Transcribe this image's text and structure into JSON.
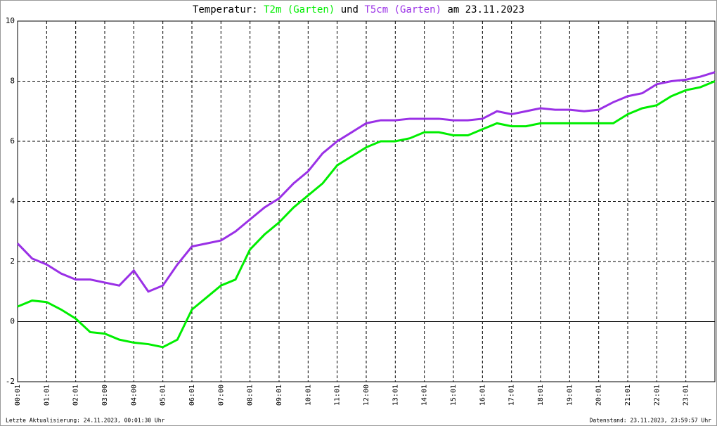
{
  "chart_data": {
    "type": "line",
    "title_prefix": "Temperatur:",
    "title_joiner": "und",
    "title_suffix": "am 23.11.2023",
    "x": [
      0,
      0.5,
      1,
      1.5,
      2,
      2.5,
      3,
      3.5,
      4,
      4.5,
      5,
      5.5,
      6,
      6.5,
      7,
      7.5,
      8,
      8.5,
      9,
      9.5,
      10,
      10.5,
      11,
      11.5,
      12,
      12.5,
      13,
      13.5,
      14,
      14.5,
      15,
      15.5,
      16,
      16.5,
      17,
      17.5,
      18,
      18.5,
      19,
      19.5,
      20,
      20.5,
      21,
      21.5,
      22,
      22.5,
      23,
      23.5,
      24
    ],
    "series": [
      {
        "name": "T2m (Garten)",
        "color": "#00ee00",
        "values": [
          0.5,
          0.7,
          0.65,
          0.4,
          0.1,
          -0.35,
          -0.4,
          -0.6,
          -0.7,
          -0.75,
          -0.85,
          -0.6,
          0.4,
          0.8,
          1.2,
          1.4,
          2.4,
          2.9,
          3.3,
          3.8,
          4.2,
          4.6,
          5.2,
          5.5,
          5.8,
          6.0,
          6.0,
          6.1,
          6.3,
          6.3,
          6.2,
          6.2,
          6.4,
          6.6,
          6.5,
          6.5,
          6.6,
          6.6,
          6.6,
          6.6,
          6.6,
          6.6,
          6.9,
          7.1,
          7.2,
          7.5,
          7.7,
          7.8,
          8.0
        ]
      },
      {
        "name": "T5cm (Garten)",
        "color": "#9a30e6",
        "values": [
          2.6,
          2.1,
          1.9,
          1.6,
          1.4,
          1.4,
          1.3,
          1.2,
          1.7,
          1.0,
          1.2,
          1.9,
          2.5,
          2.6,
          2.7,
          3.0,
          3.4,
          3.8,
          4.1,
          4.6,
          5.0,
          5.6,
          6.0,
          6.3,
          6.6,
          6.7,
          6.7,
          6.75,
          6.75,
          6.75,
          6.7,
          6.7,
          6.75,
          7.0,
          6.9,
          7.0,
          7.1,
          7.05,
          7.05,
          7.0,
          7.05,
          7.3,
          7.5,
          7.6,
          7.9,
          8.0,
          8.05,
          8.15,
          8.3
        ]
      }
    ],
    "xlim": [
      0,
      24
    ],
    "xticks": [
      {
        "value": 0,
        "label": "00:01"
      },
      {
        "value": 1,
        "label": "01:01"
      },
      {
        "value": 2,
        "label": "02:01"
      },
      {
        "value": 3,
        "label": "03:00"
      },
      {
        "value": 4,
        "label": "04:00"
      },
      {
        "value": 5,
        "label": "05:01"
      },
      {
        "value": 6,
        "label": "06:01"
      },
      {
        "value": 7,
        "label": "07:00"
      },
      {
        "value": 8,
        "label": "08:01"
      },
      {
        "value": 9,
        "label": "09:01"
      },
      {
        "value": 10,
        "label": "10:01"
      },
      {
        "value": 11,
        "label": "11:01"
      },
      {
        "value": 12,
        "label": "12:00"
      },
      {
        "value": 13,
        "label": "13:01"
      },
      {
        "value": 14,
        "label": "14:01"
      },
      {
        "value": 15,
        "label": "15:01"
      },
      {
        "value": 16,
        "label": "16:01"
      },
      {
        "value": 17,
        "label": "17:01"
      },
      {
        "value": 18,
        "label": "18:01"
      },
      {
        "value": 19,
        "label": "19:01"
      },
      {
        "value": 20,
        "label": "20:01"
      },
      {
        "value": 21,
        "label": "21:01"
      },
      {
        "value": 22,
        "label": "22:01"
      },
      {
        "value": 23,
        "label": "23:01"
      }
    ],
    "ylim": [
      -2,
      10
    ],
    "yticks": [
      -2,
      0,
      2,
      4,
      6,
      8,
      10
    ],
    "grid": true,
    "footer_left": "Letzte Aktualisierung: 24.11.2023, 00:01:30 Uhr",
    "footer_right": "Datenstand: 23.11.2023, 23:59:57 Uhr"
  }
}
